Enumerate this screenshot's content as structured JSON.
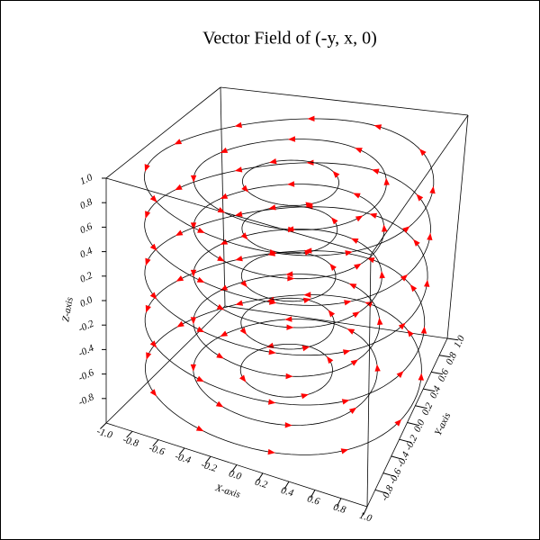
{
  "chart_data": {
    "type": "vector-field-3d",
    "title": "Vector Field of (-y, x, 0)",
    "xlabel": "X-axis",
    "ylabel": "Y-axis",
    "zlabel": "Z-axis",
    "xlim": [
      -1,
      1
    ],
    "ylim": [
      -1,
      1
    ],
    "zlim": [
      -1,
      1
    ],
    "xticks": [
      {
        "value": -1,
        "label": "-1.0"
      },
      -0.8,
      -0.6,
      -0.4,
      -0.2,
      {
        "value": 0,
        "label": "0.0"
      },
      0.2,
      0.4,
      0.6,
      0.8,
      {
        "value": 1,
        "label": "1.0"
      }
    ],
    "yticks": [
      -0.8,
      -0.6,
      -0.4,
      -0.2,
      {
        "value": 0,
        "label": "0.0"
      },
      0.2,
      0.4,
      0.6,
      0.8,
      {
        "value": 1,
        "label": "1.0"
      }
    ],
    "zticks": [
      -0.8,
      -0.6,
      -0.4,
      -0.2,
      {
        "value": 0,
        "label": "0.0"
      },
      0.2,
      0.4,
      0.6,
      0.8,
      {
        "value": 1,
        "label": "1.0"
      }
    ],
    "streamlines": {
      "z_levels": [
        -0.8,
        -0.4,
        0,
        0.4,
        0.8
      ],
      "radii": [
        0.35,
        0.7,
        1.05
      ]
    },
    "line_color": "#000000",
    "arrow_color": "#ff0000"
  }
}
